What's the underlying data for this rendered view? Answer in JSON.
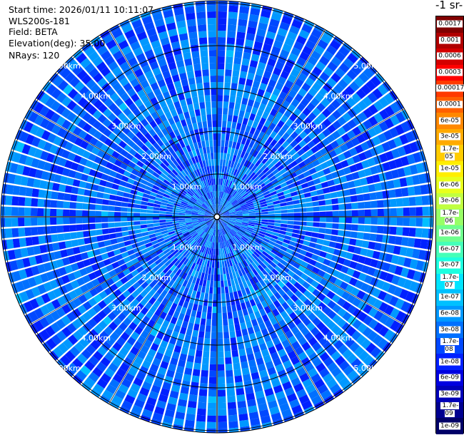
{
  "info": {
    "start_time": "Start time: 2026/01/11 10:11:07",
    "instrument": "WLS200s-181",
    "field": "Field: BETA",
    "elevation": "Elevation(deg): 35.00",
    "nrays": "NRays: 120"
  },
  "colorbar": {
    "title": "-1 sr-",
    "labels": [
      "0.0017",
      "0.001",
      "0.0006",
      "0.0003",
      "0.00017",
      "0.0001",
      "6e-05",
      "3e-05",
      "1.7e-05",
      "1e-05",
      "6e-06",
      "3e-06",
      "1.7e-06",
      "1e-06",
      "6e-07",
      "3e-07",
      "1.7e-07",
      "1e-07",
      "6e-08",
      "3e-08",
      "1.7e-08",
      "1e-08",
      "6e-09",
      "3e-09",
      "1.7e-09",
      "1e-09"
    ],
    "colors": [
      "#800000",
      "#b00000",
      "#d40000",
      "#ff0000",
      "#ff3a00",
      "#ff6000",
      "#ff8800",
      "#ffaa00",
      "#ffcc00",
      "#ffee00",
      "#e8ff1c",
      "#c0ff40",
      "#98ff66",
      "#6eff8e",
      "#44ffb8",
      "#1cffe0",
      "#00e4ff",
      "#00c0ff",
      "#0098ff",
      "#0070ff",
      "#0048ff",
      "#0020ff",
      "#0000e0",
      "#0000b8",
      "#000090",
      "#000068"
    ]
  },
  "chart_data": {
    "type": "heatmap",
    "projection": "polar-ppi",
    "field": "BETA",
    "elevation_deg": 35.0,
    "nrays": 120,
    "range_rings_km": [
      1,
      2,
      3,
      4,
      5
    ],
    "range_ring_labels": [
      "1.00km",
      "2.00km",
      "3.00km",
      "4.00km",
      "5.00km"
    ],
    "max_range_km": 5.05,
    "value_min": 1e-09,
    "value_max": 0.0017,
    "typical_value": 3e-08,
    "grid": true
  }
}
